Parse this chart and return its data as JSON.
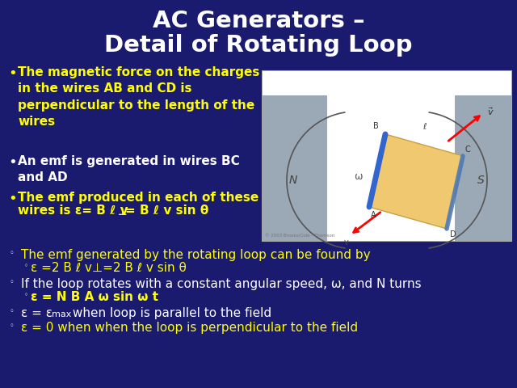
{
  "bg_color": "#1a1a6e",
  "title_line1": "AC Generators –",
  "title_line2": "Detail of Rotating Loop",
  "title_color": "#ffffff",
  "title_fontsize": 21,
  "bullet_color": "#ffff00",
  "white_color": "#ffffff",
  "bullet1": "The magnetic force on the charges\nin the wires AB and CD is\nperpendicular to the length of the\nwires",
  "bullet2": "An emf is generated in wires BC\nand AD",
  "body1": "The emf generated by the rotating loop can be found by",
  "body1_sub": "ε =2 B ℓ v⊥=2 B ℓ v sin θ",
  "body2": "If the loop rotates with a constant angular speed, ω, and N turns",
  "body2_sub": "ε = N B A ω sin ω t",
  "body4": "ε = 0 when when the loop is perpendicular to the field",
  "fontsize_body": 11,
  "fontsize_bullet": 11,
  "fontsize_title": 21
}
